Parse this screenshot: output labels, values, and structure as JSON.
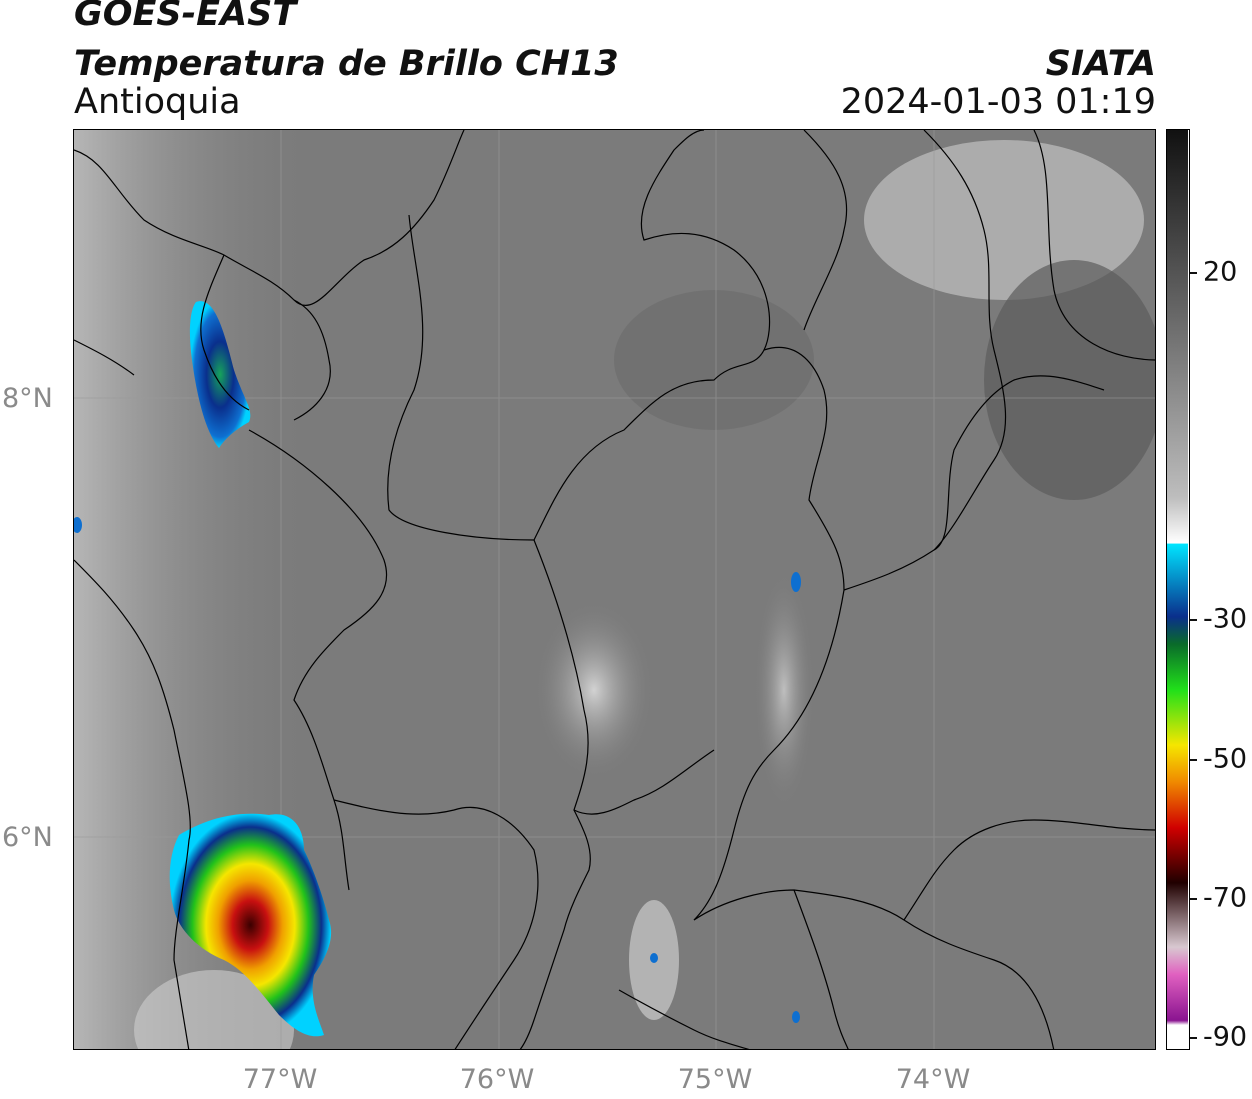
{
  "header": {
    "satellite": "GOES-EAST",
    "product": "Temperatura de Brillo CH13",
    "region": "Antioquia",
    "organization": "SIATA",
    "timestamp": "2024-01-03 01:19"
  },
  "axes": {
    "lat_labels": [
      "8°N",
      "6°N"
    ],
    "lon_labels": [
      "77°W",
      "76°W",
      "75°W",
      "74°W"
    ]
  },
  "colorbar": {
    "ticks": [
      "20",
      "-30",
      "-50",
      "-70",
      "-90"
    ],
    "tick_values": [
      20,
      -30,
      -50,
      -70,
      -90
    ],
    "range": [
      -90,
      45
    ],
    "units_shown": ""
  },
  "colors": {
    "background_gray": "#7a7a7a",
    "cold_cloud_blue": "#0a2f8c",
    "cold_cloud_green": "#21c21a",
    "cold_cloud_yellow": "#f5e600",
    "cold_cloud_red": "#c81010",
    "borders": "#000000"
  }
}
